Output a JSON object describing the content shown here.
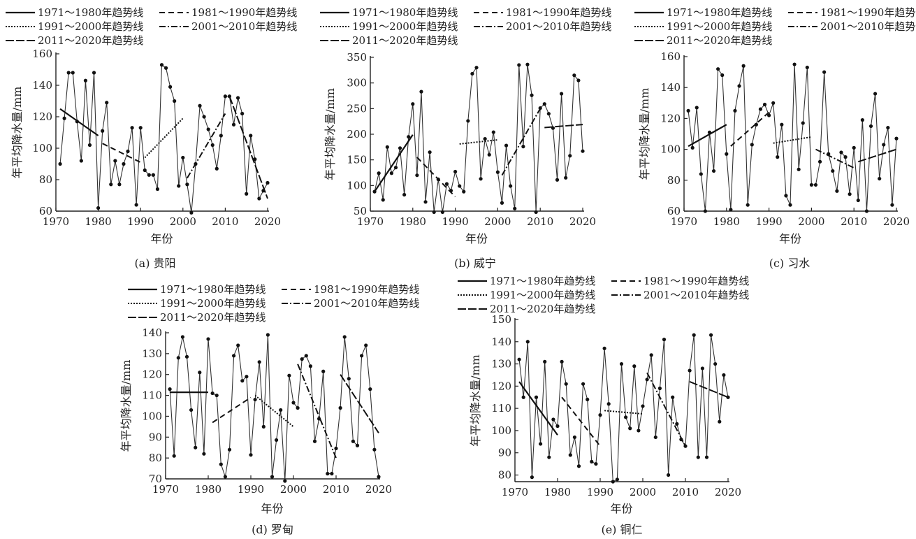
{
  "trend_labels": [
    "1971～1980年趋势线",
    "1981～1990年趋势线",
    "1991～2000年趋势线",
    "2001～2010年趋势线",
    "2011～2020年趋势线"
  ],
  "chart_data": [
    {
      "type": "line",
      "title": "(a) 贵阳",
      "xlabel": "年份",
      "ylabel": "年平均降水量/mm",
      "xlim": [
        1970,
        2020
      ],
      "ylim": [
        60,
        160
      ],
      "xticks": [
        1970,
        1980,
        1990,
        2000,
        2010,
        2020
      ],
      "yticks": [
        60,
        80,
        100,
        120,
        140,
        160
      ],
      "start_year": 1971,
      "values": [
        90,
        119,
        148,
        148,
        117,
        92,
        143,
        102,
        148,
        62,
        111,
        129,
        77,
        92,
        77,
        90,
        98,
        113,
        64,
        113,
        86,
        83,
        83,
        74,
        153,
        151,
        139,
        130,
        76,
        94,
        77,
        59,
        90,
        127,
        120,
        112,
        102,
        87,
        108,
        133,
        133,
        115,
        132,
        122,
        71,
        108,
        93,
        68,
        73,
        78
      ],
      "trends": [
        [
          1971,
          125,
          1980,
          108
        ],
        [
          1981,
          103,
          1990,
          91
        ],
        [
          1991,
          94,
          2000,
          119
        ],
        [
          2001,
          81,
          2010,
          122
        ],
        [
          2011,
          133,
          2020,
          68
        ]
      ]
    },
    {
      "type": "line",
      "title": "(b) 威宁",
      "xlabel": "年份",
      "ylabel": "年平均降水量/mm",
      "xlim": [
        1970,
        2020
      ],
      "ylim": [
        50,
        350
      ],
      "xticks": [
        1970,
        1980,
        1990,
        2000,
        2010,
        2020
      ],
      "yticks": [
        50,
        100,
        150,
        200,
        250,
        300,
        350
      ],
      "start_year": 1971,
      "values": [
        88,
        124,
        72,
        175,
        124,
        135,
        173,
        82,
        195,
        259,
        120,
        283,
        68,
        165,
        48,
        112,
        48,
        103,
        90,
        127,
        99,
        88,
        226,
        318,
        330,
        113,
        191,
        160,
        204,
        126,
        66,
        178,
        99,
        55,
        335,
        176,
        336,
        276,
        48,
        251,
        259,
        240,
        212,
        111,
        279,
        115,
        158,
        315,
        305,
        167
      ],
      "trends": [
        [
          1971,
          88,
          1980,
          199
        ],
        [
          1981,
          155,
          1990,
          78
        ],
        [
          1991,
          181,
          2000,
          189
        ],
        [
          2001,
          120,
          2010,
          250
        ],
        [
          2011,
          213,
          2020,
          219
        ]
      ]
    },
    {
      "type": "line",
      "title": "(c) 习水",
      "xlabel": "年份",
      "ylabel": "年平均降水量/mm",
      "xlim": [
        1970,
        2020
      ],
      "ylim": [
        60,
        160
      ],
      "xticks": [
        1970,
        1980,
        1990,
        2000,
        2010,
        2020
      ],
      "yticks": [
        60,
        80,
        100,
        120,
        140,
        160
      ],
      "start_year": 1971,
      "values": [
        125,
        101,
        127,
        84,
        60,
        111,
        86,
        152,
        148,
        97,
        61,
        125,
        141,
        154,
        64,
        103,
        116,
        126,
        129,
        122,
        130,
        95,
        116,
        70,
        64,
        155,
        87,
        117,
        153,
        77,
        77,
        92,
        150,
        97,
        86,
        73,
        98,
        95,
        71,
        101,
        67,
        119,
        60,
        115,
        136,
        81,
        103,
        114,
        64,
        107
      ],
      "trends": [
        [
          1971,
          102,
          1980,
          116
        ],
        [
          1981,
          102,
          1990,
          124
        ],
        [
          1991,
          104,
          2000,
          108
        ],
        [
          2001,
          100,
          2010,
          88
        ],
        [
          2011,
          92,
          2020,
          100
        ]
      ]
    },
    {
      "type": "line",
      "title": "(d) 罗甸",
      "xlabel": "年份",
      "ylabel": "年平均降水量/mm",
      "xlim": [
        1970,
        2020
      ],
      "ylim": [
        70,
        140
      ],
      "xticks": [
        1970,
        1980,
        1990,
        2000,
        2010,
        2020
      ],
      "yticks": [
        70,
        80,
        90,
        100,
        110,
        120,
        130,
        140
      ],
      "start_year": 1971,
      "values": [
        113,
        81,
        128,
        138,
        128.5,
        103,
        85,
        121,
        82,
        137,
        111,
        110,
        77,
        71,
        84,
        129,
        134,
        117,
        119,
        81.5,
        108,
        126,
        95,
        139,
        71,
        88.6,
        103,
        69,
        119.5,
        106.5,
        104,
        127.4,
        129,
        124,
        88,
        98.8,
        121.5,
        72.5,
        72.5,
        84.6,
        104,
        138,
        118,
        88,
        86,
        129,
        134,
        113,
        84,
        71
      ],
      "trends": [
        [
          1971,
          111.5,
          1980,
          111.5
        ],
        [
          1981,
          97,
          1990,
          109
        ],
        [
          1991,
          110,
          2000,
          95
        ],
        [
          2001,
          125,
          2010,
          80
        ],
        [
          2011,
          120,
          2020,
          92
        ]
      ]
    },
    {
      "type": "line",
      "title": "(e) 铜仁",
      "xlabel": "年份",
      "ylabel": "年平均降水量/mm",
      "xlim": [
        1970,
        2020
      ],
      "ylim": [
        77,
        150
      ],
      "xticks": [
        1970,
        1980,
        1990,
        2000,
        2010,
        2020
      ],
      "yticks": [
        80,
        90,
        100,
        110,
        120,
        130,
        140,
        150
      ],
      "start_year": 1971,
      "values": [
        132,
        115,
        140,
        79,
        115,
        94,
        131,
        88,
        105,
        102,
        131,
        121,
        89,
        97,
        84,
        121,
        114,
        86,
        85,
        107,
        137,
        112,
        77,
        78,
        130,
        106,
        101,
        129,
        100,
        111,
        123,
        134,
        97,
        119,
        141,
        80,
        115,
        103,
        96,
        93,
        127,
        143,
        88,
        128,
        88,
        143,
        130,
        104,
        125,
        115
      ],
      "trends": [
        [
          1971,
          122,
          1980,
          98
        ],
        [
          1981,
          115,
          1990,
          93
        ],
        [
          1991,
          109,
          2000,
          107.5
        ],
        [
          2001,
          126,
          2010,
          93
        ],
        [
          2011,
          122,
          2020,
          115
        ]
      ]
    }
  ]
}
